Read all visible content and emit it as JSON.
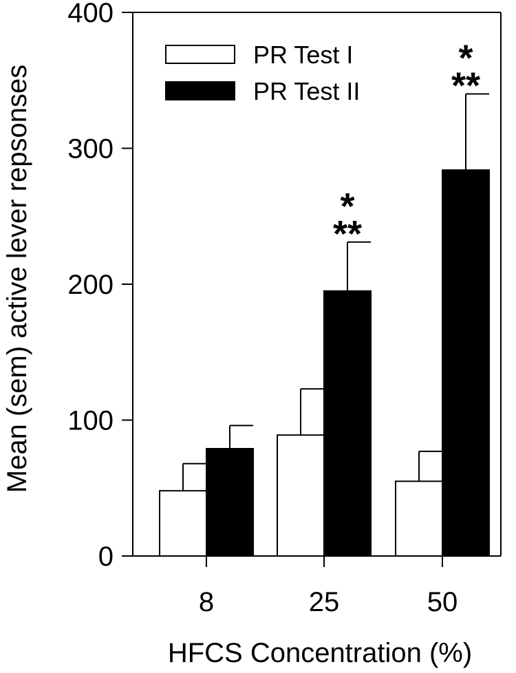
{
  "chart_data": {
    "type": "bar",
    "title": "",
    "xlabel": "HFCS Concentration (%)",
    "ylabel": "Mean (sem) active lever repsonses",
    "categories": [
      "8",
      "25",
      "50"
    ],
    "ylim": [
      0,
      400
    ],
    "yticks": [
      "0",
      "100",
      "200",
      "300",
      "400"
    ],
    "series": [
      {
        "name": "PR Test I",
        "color": "#ffffff",
        "values": [
          48,
          89,
          55
        ],
        "errors": [
          20,
          34,
          22
        ]
      },
      {
        "name": "PR Test II",
        "color": "#000000",
        "values": [
          79,
          195,
          284
        ],
        "errors": [
          17,
          36,
          56
        ]
      }
    ],
    "annotations": [
      {
        "category": "8",
        "label": ""
      },
      {
        "category": "25",
        "label": "* **"
      },
      {
        "category": "50",
        "label": "* **"
      }
    ],
    "legend_position": "top-left"
  }
}
